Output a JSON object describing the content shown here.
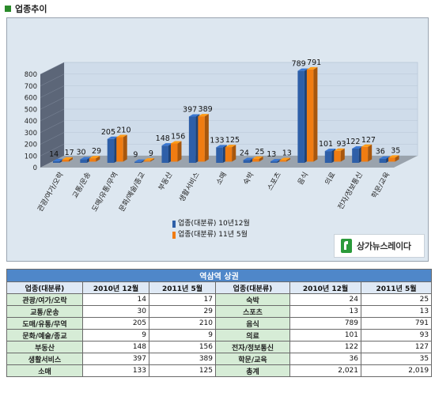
{
  "section": {
    "title": "업종추이"
  },
  "chart_data": {
    "type": "bar",
    "categories": [
      "관광/여가/오락",
      "교통/운송",
      "도매/유통/무역",
      "문화/예술/종교",
      "부동산",
      "생활서비스",
      "소매",
      "숙박",
      "스포츠",
      "음식",
      "의료",
      "전자/정보통신",
      "학문/교육"
    ],
    "series": [
      {
        "name": "업종(대분류) 10년12월",
        "color": "#2e5fa8",
        "values": [
          14,
          30,
          205,
          9,
          148,
          397,
          133,
          24,
          13,
          789,
          101,
          122,
          36
        ]
      },
      {
        "name": "업종(대분류) 11년 5월",
        "color": "#f07c12",
        "values": [
          17,
          29,
          210,
          9,
          156,
          389,
          125,
          25,
          13,
          791,
          93,
          127,
          35
        ]
      }
    ],
    "y_ticks": [
      0,
      100,
      200,
      300,
      400,
      500,
      600,
      700,
      800
    ],
    "ylim": [
      0,
      800
    ],
    "grid": true,
    "legend": "bottom-center",
    "style": "3d-clustered-bar"
  },
  "logo": {
    "text": "상가뉴스레이다"
  },
  "table": {
    "caption": "역삼역 상권",
    "headers": [
      "업종(대분류)",
      "2010년 12월",
      "2011년 5월",
      "업종(대분류)",
      "2010년 12월",
      "2011년 5월"
    ],
    "rows": [
      [
        "관광/여가/오락",
        "14",
        "17",
        "숙박",
        "24",
        "25"
      ],
      [
        "교통/운송",
        "30",
        "29",
        "스포츠",
        "13",
        "13"
      ],
      [
        "도매/유통/무역",
        "205",
        "210",
        "음식",
        "789",
        "791"
      ],
      [
        "문화/예술/종교",
        "9",
        "9",
        "의료",
        "101",
        "93"
      ],
      [
        "부동산",
        "148",
        "156",
        "전자/정보통신",
        "122",
        "127"
      ],
      [
        "생활서비스",
        "397",
        "389",
        "학문/교육",
        "36",
        "35"
      ],
      [
        "소매",
        "133",
        "125",
        "총계",
        "2,021",
        "2,019"
      ]
    ]
  }
}
